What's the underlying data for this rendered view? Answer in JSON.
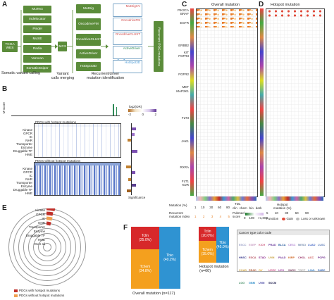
{
  "panels": {
    "A": "A",
    "B": "B",
    "C": "C",
    "D": "D",
    "E": "E",
    "F": "F"
  },
  "panelA": {
    "input": "TCGA\nWES",
    "tools": [
      "MuTect",
      "Indelocator",
      "Pindel",
      "MuSE",
      "Radia",
      "Varscan",
      "SomaticSniper"
    ],
    "merge": "MC3",
    "drivers": [
      "MutSig",
      "OncodriveFM",
      "OncodriveCLUST",
      "ActiveDriver",
      "HotSpot3D"
    ],
    "result": "Recurrent PDG mutations",
    "card_labels": [
      "MutSigCV",
      "OncodriveFM",
      "OncodriveCLUST",
      "ActiveDriver",
      "HotSpot3D"
    ],
    "caption1": "Somatic variant calling",
    "caption2": "Variant\ncalls merging",
    "caption3": "Recurrent/driver\nmutation identification"
  },
  "panelB": {
    "mscore": "M-score",
    "with_title": "PDGs with hotspot mutations",
    "without_title": "PDGs without hotspot mutations",
    "rows": [
      "Kinase",
      "GPCR",
      "IC",
      "NHR",
      "Transporter",
      "Enzyme",
      "Druggable TF",
      "HME"
    ],
    "legend_title": "log2(OR)",
    "legend_ticks": [
      "-2",
      "0",
      "2"
    ],
    "sig_label": "Significance"
  },
  "panelC": {
    "title": "Overall mutation",
    "genes": [
      "PIK3CA",
      "BRAF",
      "EGFR",
      "ERBB2",
      "KIT",
      "FGFR3",
      "FGFR2",
      "MET",
      "MAP2K1",
      "FLT3",
      "JAK1",
      "RXRA",
      "FLT1",
      "KDR"
    ],
    "mut_label": "Mutation (%)",
    "mut_ticks": [
      "1",
      "10",
      "30",
      "60",
      "90"
    ],
    "recurrent_label": "Recurrent\nmutation index",
    "recurrent_ticks": [
      "1",
      "2",
      "3",
      "4",
      "5"
    ],
    "tdl_label": "TDL",
    "tdl_ticks": [
      "clin",
      "chem",
      "bio",
      "dark"
    ],
    "pubmed_label": "Pubmed\nscore",
    "pubmed_ticks": [
      "0",
      "100",
      ">1,000"
    ],
    "hms_label": "HMS"
  },
  "panelD": {
    "title": "Hotspot mutation",
    "hot_label": "Hotspot\nmutation (%)",
    "hot_ticks": [
      "5",
      "10",
      "30",
      "60",
      "90"
    ],
    "function_label": "Function",
    "gain": "Gain",
    "loss": "Loss or unknown"
  },
  "panelE": {
    "rows": [
      "Kinase",
      "GPCR",
      "IC",
      "NHR",
      "Transporter",
      "Enzyme",
      "Druggable TF",
      "HME",
      "Over all"
    ],
    "legend_with": "PDGs with hotspot mutations",
    "legend_without": "PDGs without hotspot mutations"
  },
  "panelF": {
    "overall": {
      "caption": "Overall mutation (n=117)",
      "cells": [
        {
          "label": "Tclin",
          "pct": "(25.0%)"
        },
        {
          "label": "Tchem",
          "pct": "(34.8%)"
        },
        {
          "label": "Tbio",
          "pct": "(40.2%)"
        }
      ]
    },
    "hotspot": {
      "caption": "Hotspot mutation\n(n=60)",
      "cells": [
        {
          "label": "Tclin",
          "pct": "(20.0%)"
        },
        {
          "label": "Tchem",
          "pct": "(35.0%)"
        },
        {
          "label": "Tbio",
          "pct": "(45.0%)"
        }
      ]
    }
  },
  "cancer_codes": {
    "title": "Cancer type color code",
    "codes": [
      "ESCC",
      "ESEP",
      "KICH",
      "PRAD",
      "BLCA",
      "CESC",
      "MESO",
      "LUAD",
      "LUSC",
      "HNSC",
      "ESCA",
      "STAD",
      "UVM",
      "PAAD",
      "KIRP",
      "CHOL",
      "ACC",
      "PCPG",
      "COAD",
      "READ",
      "OV",
      "UCEC",
      "UCS",
      "SARC",
      "TGCT",
      "LAML",
      "DLBC",
      "LGG",
      "GBM",
      "UVM",
      "SKCM"
    ],
    "colors": [
      "#9aa0c8",
      "#c9a0c4",
      "#d06a8a",
      "#6c3f9e",
      "#2d5fa0",
      "#b48bd3",
      "#7a8fb0",
      "#4b6ec8",
      "#5c7ab8",
      "#3e3e90",
      "#b44b5a",
      "#8b2b8b",
      "#c8a040",
      "#7a3f9e",
      "#d16b2a",
      "#9e3f6f",
      "#c84b4b",
      "#6f2b8b",
      "#c8a040",
      "#b06040",
      "#e0a020",
      "#c84b80",
      "#9e3f9e",
      "#7a3f60",
      "#a0a0a0",
      "#4b8bc8",
      "#2b5fb0",
      "#3e8b60",
      "#2b8bc8",
      "#4040a0",
      "#202050"
    ]
  }
}
